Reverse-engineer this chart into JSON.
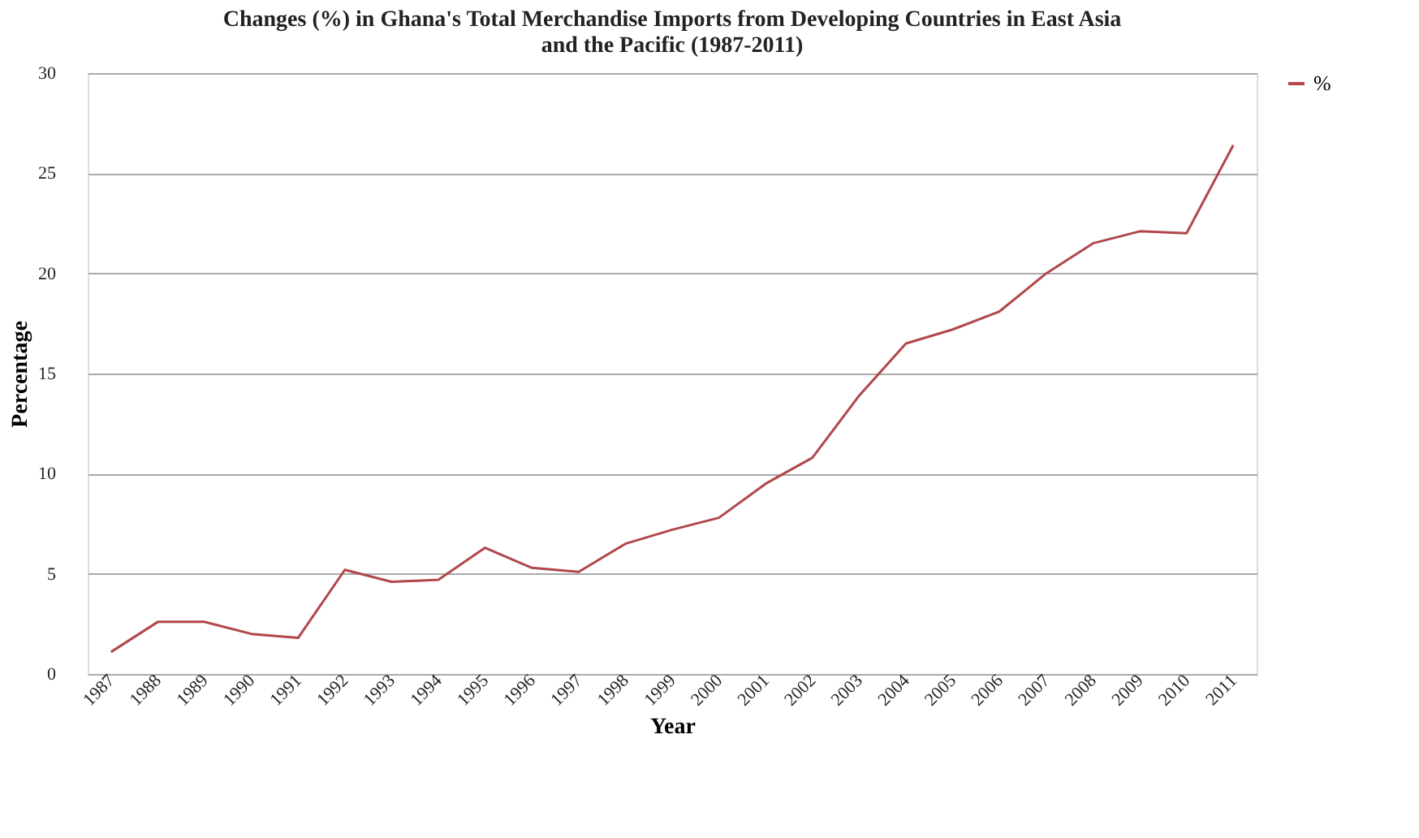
{
  "chart_data": {
    "type": "line",
    "title": [
      "Changes (%) in Ghana's Total Merchandise Imports from Developing Countries in East Asia",
      "and the Pacific (1987-2011)"
    ],
    "xlabel": "Year",
    "ylabel": "Percentage",
    "categories": [
      "1987",
      "1988",
      "1989",
      "1990",
      "1991",
      "1992",
      "1993",
      "1994",
      "1995",
      "1996",
      "1997",
      "1998",
      "1999",
      "2000",
      "2001",
      "2002",
      "2003",
      "2004",
      "2005",
      "2006",
      "2007",
      "2008",
      "2009",
      "2010",
      "2011"
    ],
    "series": [
      {
        "name": "%",
        "color": "#b0474b",
        "values": [
          1.1,
          2.6,
          2.6,
          2.0,
          1.8,
          5.2,
          4.6,
          4.7,
          6.3,
          5.3,
          5.1,
          6.5,
          7.2,
          7.8,
          9.5,
          10.8,
          13.9,
          16.5,
          17.2,
          18.1,
          20.0,
          21.5,
          22.1,
          22.0,
          26.4
        ]
      }
    ],
    "ylim": [
      0,
      30
    ],
    "yticks": [
      0,
      5,
      10,
      15,
      20,
      25,
      30
    ],
    "grid": "y",
    "legend": "right",
    "marker": "none",
    "line_style": "solid"
  }
}
